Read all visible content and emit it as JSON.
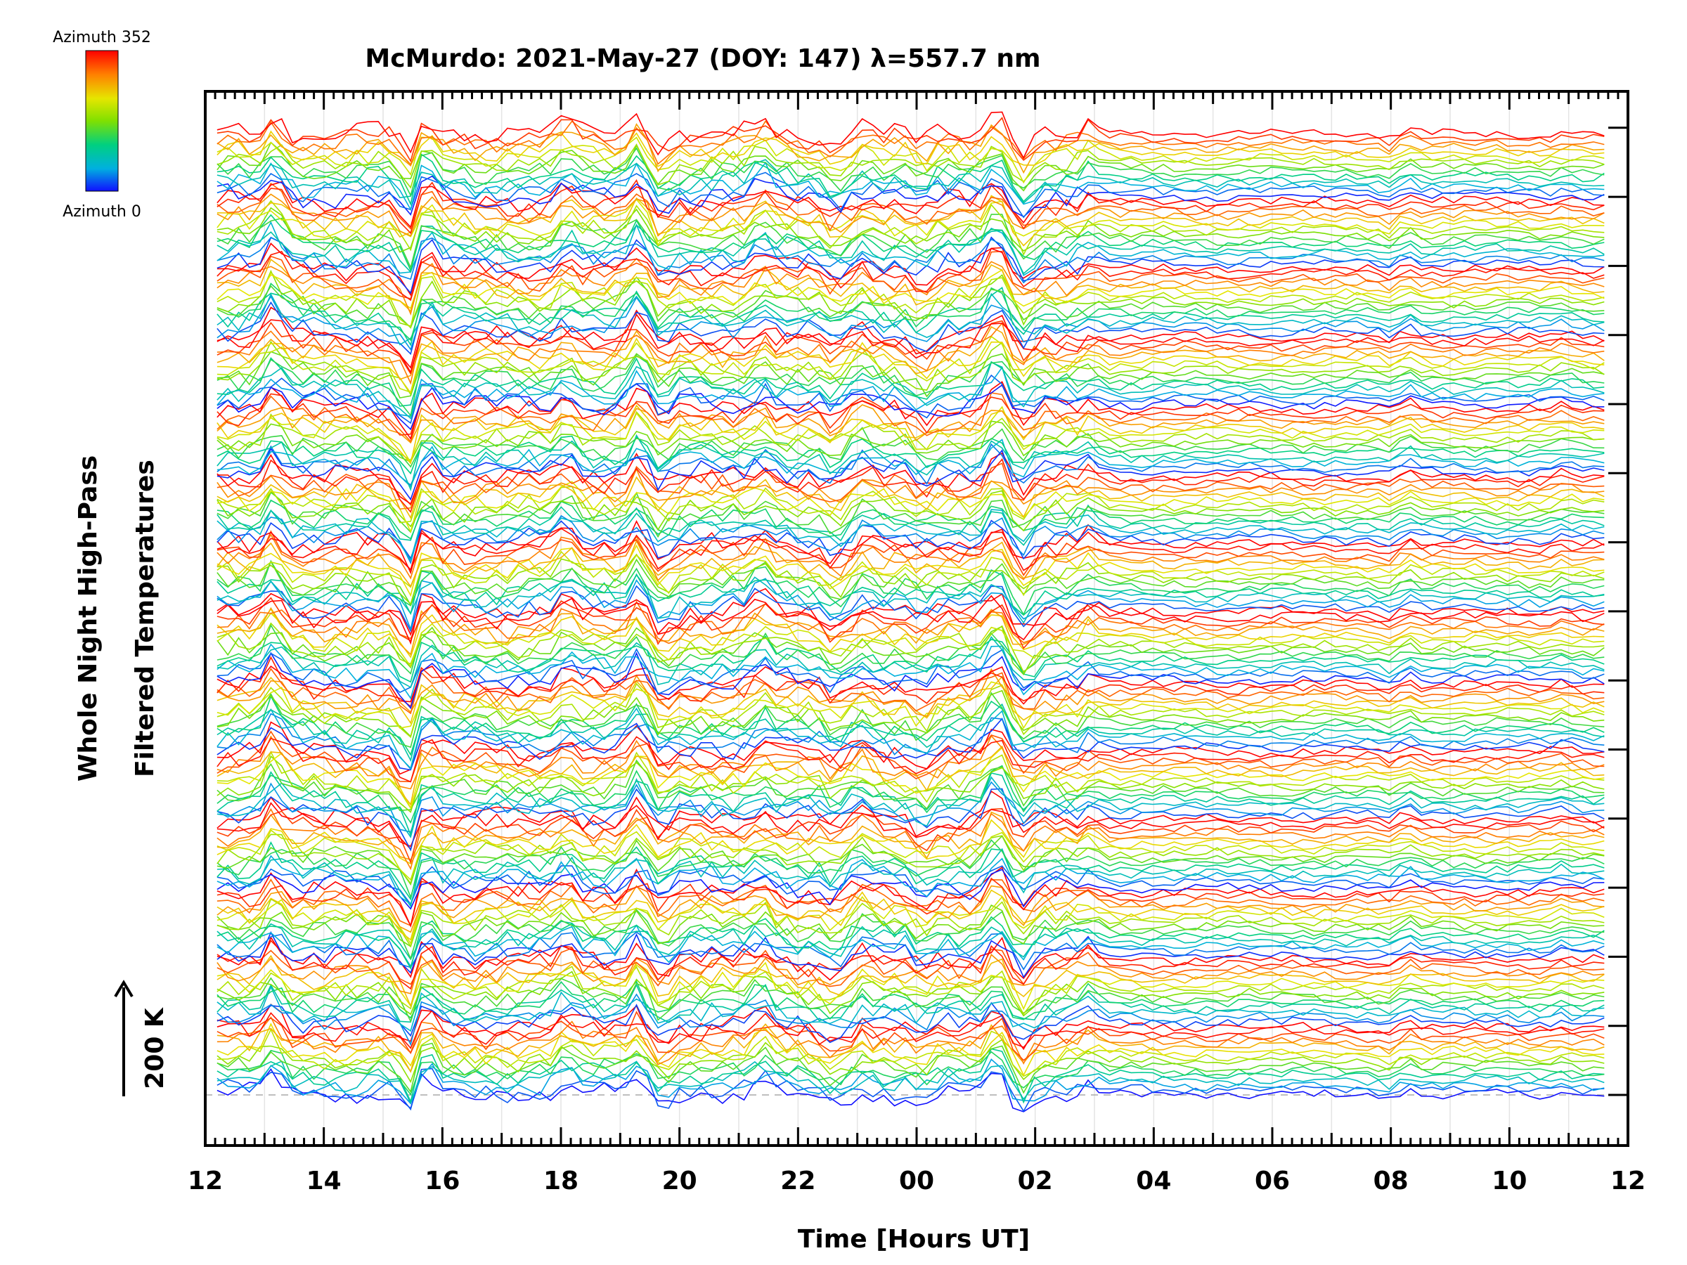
{
  "chart_data": {
    "type": "line",
    "title": "McMurdo: 2021-May-27 (DOY: 147) λ=557.7 nm",
    "xlabel": "Time [Hours UT]",
    "ylabel_lines": [
      "Whole Night High-Pass",
      "Filtered Temperatures"
    ],
    "x_tick_labels": [
      "12",
      "14",
      "16",
      "18",
      "20",
      "22",
      "00",
      "02",
      "04",
      "06",
      "08",
      "10",
      "12"
    ],
    "xlim_hours": [
      12,
      36
    ],
    "scale_bar_label": "200 K",
    "colorbar": {
      "top_label": "Azimuth  352",
      "bottom_label": "Azimuth  0",
      "colors": [
        "#ff0000",
        "#ff8000",
        "#e6e600",
        "#80e000",
        "#00d080",
        "#00b0e0",
        "#1010ff"
      ]
    },
    "series_count": 200,
    "series_groups": 14,
    "grid": true
  }
}
